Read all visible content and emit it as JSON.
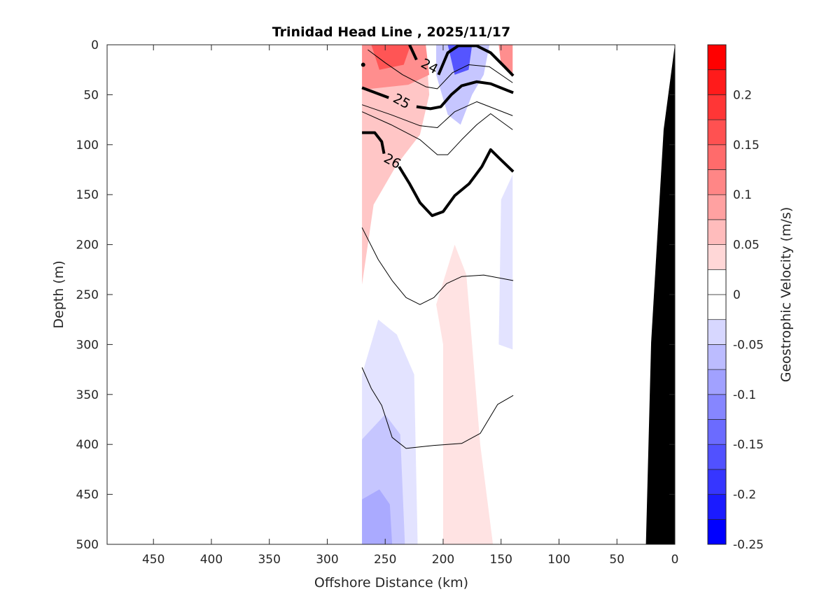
{
  "chart_data": {
    "type": "contour",
    "title": "Trinidad Head Line , 2025/11/17",
    "xlabel": "Offshore Distance (km)",
    "ylabel": "Depth (m)",
    "xlim": [
      490,
      0
    ],
    "ylim": [
      0,
      500
    ],
    "x_reversed": true,
    "y_reversed": true,
    "xticks": [
      450,
      400,
      350,
      300,
      250,
      200,
      150,
      100,
      50,
      0
    ],
    "yticks": [
      0,
      50,
      100,
      150,
      200,
      250,
      300,
      350,
      400,
      450,
      500
    ],
    "colorbar": {
      "label": "Geostrophic Velocity (m/s)",
      "range": [
        -0.25,
        0.25
      ],
      "step": 0.025,
      "ticks": [
        0.2,
        0.15,
        0.1,
        0.05,
        0,
        -0.05,
        -0.1,
        -0.15,
        -0.2,
        -0.25
      ],
      "negative_color": "#0000ff",
      "positive_color": "#ff0000"
    },
    "velocity_regions": [
      {
        "level": 0.05,
        "points": [
          [
            270,
            0
          ],
          [
            215,
            0
          ],
          [
            212,
            50
          ],
          [
            220,
            90
          ],
          [
            240,
            120
          ],
          [
            260,
            160
          ],
          [
            270,
            240
          ]
        ]
      },
      {
        "level": 0.1,
        "points": [
          [
            270,
            0
          ],
          [
            215,
            0
          ],
          [
            212,
            30
          ],
          [
            230,
            40
          ],
          [
            270,
            45
          ]
        ]
      },
      {
        "level": 0.175,
        "points": [
          [
            262,
            0
          ],
          [
            228,
            0
          ],
          [
            234,
            20
          ],
          [
            255,
            25
          ]
        ]
      },
      {
        "level": 0.1,
        "points": [
          [
            152,
            0
          ],
          [
            140,
            0
          ],
          [
            140,
            30
          ],
          [
            150,
            20
          ]
        ]
      },
      {
        "level": 0.025,
        "points": [
          [
            200,
            500
          ],
          [
            157,
            500
          ],
          [
            168,
            400
          ],
          [
            175,
            300
          ],
          [
            180,
            230
          ],
          [
            190,
            200
          ],
          [
            206,
            260
          ],
          [
            200,
            300
          ]
        ]
      },
      {
        "level": -0.075,
        "points": [
          [
            206,
            0
          ],
          [
            160,
            0
          ],
          [
            165,
            30
          ],
          [
            175,
            50
          ],
          [
            185,
            80
          ],
          [
            196,
            70
          ],
          [
            206,
            30
          ]
        ]
      },
      {
        "level": -0.175,
        "points": [
          [
            196,
            0
          ],
          [
            175,
            0
          ],
          [
            178,
            25
          ],
          [
            190,
            30
          ]
        ]
      },
      {
        "level": -0.03,
        "points": [
          [
            140,
            130
          ],
          [
            150,
            155
          ],
          [
            152,
            300
          ],
          [
            140,
            305
          ]
        ]
      },
      {
        "level": -0.04,
        "points": [
          [
            270,
            330
          ],
          [
            256,
            275
          ],
          [
            240,
            290
          ],
          [
            225,
            330
          ],
          [
            222,
            500
          ],
          [
            270,
            500
          ]
        ]
      },
      {
        "level": -0.07,
        "points": [
          [
            270,
            395
          ],
          [
            250,
            370
          ],
          [
            237,
            390
          ],
          [
            233,
            500
          ],
          [
            270,
            500
          ]
        ]
      },
      {
        "level": -0.095,
        "points": [
          [
            270,
            455
          ],
          [
            255,
            445
          ],
          [
            246,
            460
          ],
          [
            244,
            500
          ],
          [
            270,
            500
          ]
        ]
      }
    ],
    "density_contours": [
      {
        "label": "24",
        "thick": true,
        "segments": [
          [
            [
              229,
              0
            ],
            [
              223,
              15
            ]
          ],
          [
            [
              204,
              30
            ],
            [
              196,
              8
            ],
            [
              187,
              1
            ],
            [
              171,
              1
            ],
            [
              159,
              8
            ],
            [
              147,
              22
            ],
            [
              139.5,
              31
            ]
          ]
        ]
      },
      {
        "label": "",
        "thick": false,
        "segments": [
          [
            [
              265,
              5
            ],
            [
              250,
              18
            ],
            [
              235,
              30
            ],
            [
              215,
              42
            ],
            [
              205,
              44
            ],
            [
              192,
              28
            ],
            [
              178,
              20
            ],
            [
              160,
              22
            ],
            [
              140,
              38
            ]
          ]
        ]
      },
      {
        "label": "25",
        "thick": true,
        "segments": [
          [
            [
              270,
              43
            ],
            [
              247,
              53
            ]
          ],
          [
            [
              223,
              62
            ],
            [
              211,
              64
            ],
            [
              202,
              62
            ],
            [
              193,
              50
            ],
            [
              184,
              41
            ],
            [
              171,
              37
            ],
            [
              159,
              39
            ],
            [
              139.5,
              48
            ]
          ]
        ]
      },
      {
        "label": "",
        "thick": false,
        "segments": [
          [
            [
              270,
              60
            ],
            [
              245,
              70
            ],
            [
              220,
              81
            ],
            [
              205,
              83
            ],
            [
              190,
              67
            ],
            [
              171,
              57
            ],
            [
              140,
              71
            ]
          ]
        ]
      },
      {
        "label": "",
        "thick": false,
        "segments": [
          [
            [
              270,
              67
            ],
            [
              245,
              80
            ],
            [
              220,
              95
            ],
            [
              205,
              110
            ],
            [
              196,
              110
            ],
            [
              184,
              95
            ],
            [
              171,
              80
            ],
            [
              159,
              69
            ],
            [
              140,
              85
            ]
          ]
        ]
      },
      {
        "label": "26",
        "thick": true,
        "segments": [
          [
            [
              270,
              88
            ],
            [
              259,
              88
            ],
            [
              253,
              97
            ],
            [
              251,
              109
            ]
          ],
          [
            [
              238,
              122
            ],
            [
              229,
              139
            ],
            [
              220,
              158
            ],
            [
              209.5,
              171
            ],
            [
              200,
              167
            ],
            [
              190,
              151
            ],
            [
              177.5,
              139
            ],
            [
              166.6,
              122
            ],
            [
              159,
              105
            ],
            [
              152,
              113
            ],
            [
              139.5,
              127
            ]
          ]
        ]
      },
      {
        "label": "",
        "thick": false,
        "segments": [
          [
            [
              270,
              183
            ],
            [
              256,
              215
            ],
            [
              244,
              236
            ],
            [
              232,
              253
            ],
            [
              220,
              260
            ],
            [
              208,
              253
            ],
            [
              197,
              239
            ],
            [
              184,
              232
            ],
            [
              165,
              230.5
            ],
            [
              139.5,
              236
            ]
          ]
        ]
      },
      {
        "label": "",
        "thick": false,
        "segments": [
          [
            [
              270,
              323
            ],
            [
              262,
              344
            ],
            [
              253,
              361
            ],
            [
              244,
              393
            ],
            [
              232,
              404
            ],
            [
              208,
              401
            ],
            [
              184,
              399
            ],
            [
              168,
              389
            ],
            [
              153,
              360
            ],
            [
              139.5,
              351
            ]
          ]
        ]
      }
    ],
    "contour_labels": [
      {
        "text": "24",
        "x": 212,
        "y": 22
      },
      {
        "text": "25",
        "x": 236,
        "y": 57
      },
      {
        "text": "26",
        "x": 244,
        "y": 117
      }
    ],
    "bathymetry": [
      [
        0,
        0
      ],
      [
        9.7,
        85
      ],
      [
        20.5,
        298
      ],
      [
        25,
        500
      ],
      [
        0,
        500
      ]
    ]
  }
}
